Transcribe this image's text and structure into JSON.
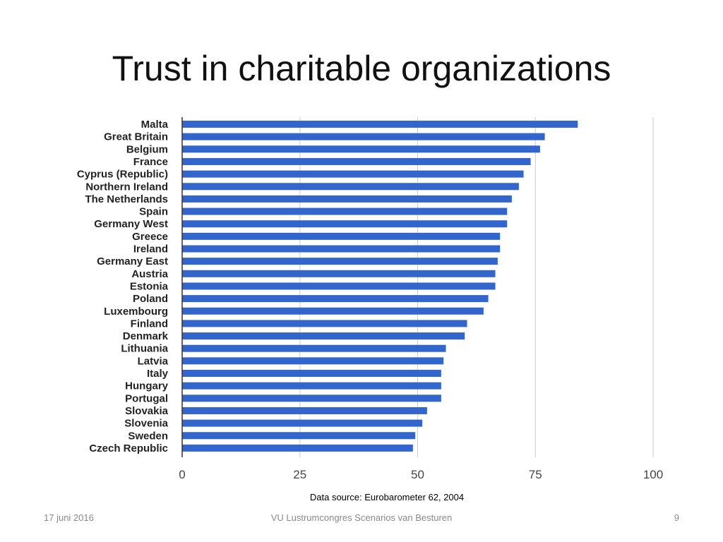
{
  "slide": {
    "title": "Trust in charitable organizations",
    "source": "Data source: Eurobarometer 62, 2004"
  },
  "footer": {
    "date": "17 juni 2016",
    "event": "VU Lustrumcongres Scenarios van Besturen",
    "page": "9"
  },
  "colors": {
    "bar": "#3366cc",
    "grid": "#cccccc",
    "axis": "#333333"
  },
  "chart_data": {
    "type": "bar",
    "orientation": "horizontal",
    "categories": [
      "Malta",
      "Great Britain",
      "Belgium",
      "France",
      "Cyprus (Republic)",
      "Northern Ireland",
      "The Netherlands",
      "Spain",
      "Germany West",
      "Greece",
      "Ireland",
      "Germany East",
      "Austria",
      "Estonia",
      "Poland",
      "Luxembourg",
      "Finland",
      "Denmark",
      "Lithuania",
      "Latvia",
      "Italy",
      "Hungary",
      "Portugal",
      "Slovakia",
      "Slovenia",
      "Sweden",
      "Czech Republic"
    ],
    "values": [
      84,
      77,
      76,
      74,
      72.5,
      71.5,
      70,
      69,
      69,
      67.5,
      67.5,
      67,
      66.5,
      66.5,
      65,
      64,
      60.5,
      60,
      56,
      55.5,
      55,
      55,
      55,
      52,
      51,
      49.5,
      49
    ],
    "xlim": [
      0,
      100
    ],
    "xticks": [
      "0",
      "25",
      "50",
      "75",
      "100"
    ],
    "grid": true
  }
}
